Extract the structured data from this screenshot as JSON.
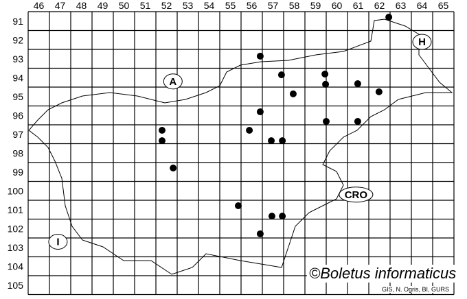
{
  "map": {
    "columns": [
      46,
      47,
      48,
      49,
      50,
      51,
      52,
      53,
      54,
      55,
      56,
      57,
      58,
      59,
      60,
      61,
      62,
      63,
      64,
      65
    ],
    "rows": [
      91,
      92,
      93,
      94,
      95,
      96,
      97,
      98,
      99,
      100,
      101,
      102,
      103,
      104,
      105
    ],
    "country_labels": [
      {
        "text": "A",
        "col": 52.8,
        "row": 94.7
      },
      {
        "text": "H",
        "col": 64.5,
        "row": 92.6
      },
      {
        "text": "CRO",
        "col": 61.4,
        "row": 100.7
      },
      {
        "text": "I",
        "col": 47.4,
        "row": 103.2
      }
    ],
    "records": [
      {
        "col": 62.94,
        "row": 91.29
      },
      {
        "col": 56.9,
        "row": 93.36
      },
      {
        "col": 57.9,
        "row": 94.35
      },
      {
        "col": 59.94,
        "row": 94.31
      },
      {
        "col": 59.97,
        "row": 94.85
      },
      {
        "col": 61.48,
        "row": 94.82
      },
      {
        "col": 58.45,
        "row": 95.36
      },
      {
        "col": 62.48,
        "row": 95.25
      },
      {
        "col": 56.9,
        "row": 96.31
      },
      {
        "col": 52.29,
        "row": 97.29
      },
      {
        "col": 52.29,
        "row": 97.84
      },
      {
        "col": 56.39,
        "row": 97.29
      },
      {
        "col": 57.42,
        "row": 97.84
      },
      {
        "col": 57.94,
        "row": 97.84
      },
      {
        "col": 60.0,
        "row": 96.82
      },
      {
        "col": 61.48,
        "row": 96.82
      },
      {
        "col": 52.81,
        "row": 99.29
      },
      {
        "col": 55.87,
        "row": 101.29
      },
      {
        "col": 57.45,
        "row": 101.84
      },
      {
        "col": 57.94,
        "row": 101.84
      },
      {
        "col": 56.9,
        "row": 102.78
      }
    ],
    "record_color": "#000000"
  },
  "credit": "©Boletus informaticus",
  "source": "GIS, N. Ogris, BI, GURS"
}
